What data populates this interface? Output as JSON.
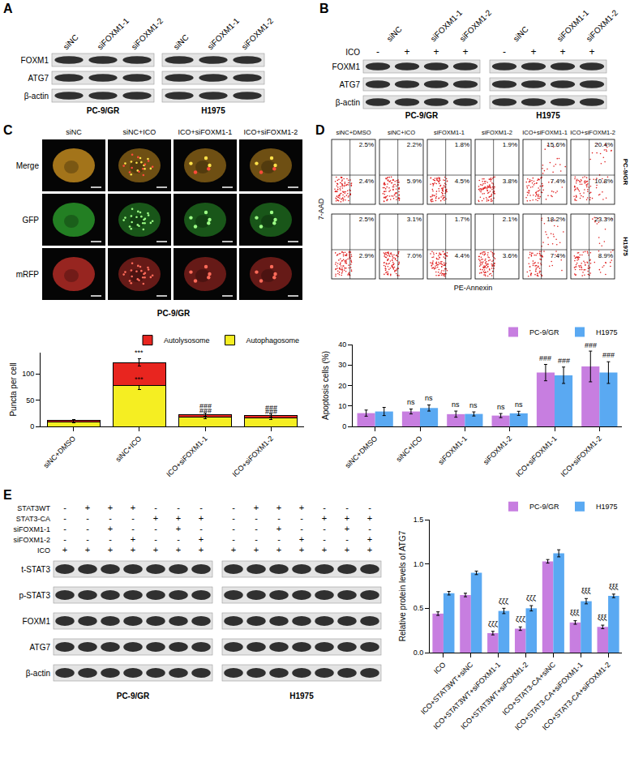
{
  "panels": {
    "A": {
      "label": "A",
      "lanes": [
        "siNC",
        "siFOXM1-1",
        "siFOXM1-2"
      ],
      "cell_lines": [
        "PC-9/GR",
        "H1975"
      ],
      "proteins": [
        "FOXM1",
        "ATG7",
        "β-actin"
      ]
    },
    "B": {
      "label": "B",
      "lane_groups": [
        {
          "text": "siNC",
          "span": 2
        },
        {
          "text": "siFOXM1-1",
          "span": 1
        },
        {
          "text": "siFOXM1-2",
          "span": 1
        }
      ],
      "treatment": {
        "name": "ICO",
        "signs": [
          "-",
          "+",
          "+",
          "+"
        ]
      },
      "cell_lines": [
        "PC-9/GR",
        "H1975"
      ],
      "proteins": [
        "FOXM1",
        "ATG7",
        "β-actin"
      ]
    },
    "C": {
      "label": "C",
      "columns": [
        "siNC",
        "siNC+ICO",
        "ICO+siFOXM1-1",
        "ICO+siFOXM1-2"
      ],
      "rows": [
        "Merge",
        "GFP",
        "mRFP"
      ],
      "cell_line": "PC-9/GR"
    },
    "D": {
      "label": "D",
      "columns": [
        "siNC+DMSO",
        "siNC+ICO",
        "siFOXM1-1",
        "siFOXM1-2",
        "ICO+siFOXM1-1",
        "ICO+siFOXM1-2"
      ],
      "x_label": "PE-Annexin",
      "y_label": "7-AAD",
      "plots": [
        {
          "cell_line": "PC-9/GR",
          "upper_right": [
            "2.5%",
            "2.2%",
            "1.8%",
            "1.9%",
            "15.6%",
            "20.4%"
          ],
          "lower_right": [
            "2.4%",
            "5.9%",
            "4.5%",
            "3.8%",
            "7.4%",
            "10.8%"
          ]
        },
        {
          "cell_line": "H1975",
          "upper_right": [
            "2.5%",
            "3.1%",
            "1.7%",
            "2.1%",
            "18.2%",
            "23.3%"
          ],
          "lower_right": [
            "2.9%",
            "7.0%",
            "4.4%",
            "3.6%",
            "7.4%",
            "8.9%"
          ]
        }
      ]
    },
    "E": {
      "label": "E",
      "treatments": [
        {
          "name": "STAT3WT",
          "signs": [
            "-",
            "+",
            "+",
            "+",
            "-",
            "-",
            "-"
          ]
        },
        {
          "name": "STAT3-CA",
          "signs": [
            "-",
            "-",
            "-",
            "-",
            "+",
            "+",
            "+"
          ]
        },
        {
          "name": "siFOXM1-1",
          "signs": [
            "-",
            "-",
            "+",
            "-",
            "-",
            "+",
            "-"
          ]
        },
        {
          "name": "siFOXM1-2",
          "signs": [
            "-",
            "-",
            "-",
            "+",
            "-",
            "-",
            "+"
          ]
        },
        {
          "name": "ICO",
          "signs": [
            "+",
            "+",
            "+",
            "+",
            "+",
            "+",
            "+"
          ]
        }
      ],
      "cell_lines": [
        "PC-9/GR",
        "H1975"
      ],
      "proteins": [
        "t-STAT3",
        "p-STAT3",
        "FOXM1",
        "ATG7",
        "β-actin"
      ]
    }
  },
  "chart_data": [
    {
      "type": "bar",
      "stacked": true,
      "categories": [
        "siNC+DMSO",
        "siNC+ICO",
        "ICO+siFOXM1-1",
        "ICO+siFOXM1-2"
      ],
      "y_label": "Puncta per cell",
      "ylim": [
        0,
        140
      ],
      "yticks": [
        0,
        50,
        100
      ],
      "grid": false,
      "legend": "top right",
      "series": [
        {
          "name": "Autophagosome",
          "color": "#f5ee22",
          "values": [
            8,
            77,
            17,
            16
          ],
          "errors": [
            1.5,
            7,
            3,
            3
          ]
        },
        {
          "name": "Autolysosome",
          "color": "#e8251f",
          "values": [
            3,
            44,
            6,
            5
          ],
          "errors": [
            2,
            7,
            3,
            3
          ]
        }
      ],
      "annotations": [
        {
          "category": "siNC+ICO",
          "y": 79,
          "text": "***"
        },
        {
          "category": "siNC+ICO",
          "y": 129,
          "text": "***"
        },
        {
          "category": "ICO+siFOXM1-1",
          "y": 18,
          "text": "###"
        },
        {
          "category": "ICO+siFOXM1-1",
          "y": 27,
          "text": "###"
        },
        {
          "category": "ICO+siFOXM1-2",
          "y": 17,
          "text": "###"
        },
        {
          "category": "ICO+siFOXM1-2",
          "y": 25,
          "text": "###"
        }
      ]
    },
    {
      "type": "bar",
      "categories": [
        "siNC+DMSO",
        "siNC+ICO",
        "siFOXM1-1",
        "siFOXM1-2",
        "ICO+siFOXM1-1",
        "ICO+siFOXM1-2"
      ],
      "y_label": "Apoptosis cells (%)",
      "ylim": [
        0,
        40
      ],
      "yticks": [
        0,
        10,
        20,
        30,
        40
      ],
      "grid": false,
      "legend": "top right",
      "series": [
        {
          "name": "PC-9/GR",
          "color": "#c77ee0",
          "values": [
            6.5,
            7.3,
            6.0,
            5.3,
            26.3,
            29.3
          ],
          "errors": [
            1.5,
            1.2,
            1.5,
            1.0,
            4.0,
            7.5
          ]
        },
        {
          "name": "H1975",
          "color": "#5aa9f2",
          "values": [
            7.3,
            9.0,
            6.1,
            6.4,
            25.0,
            26.3
          ],
          "errors": [
            2.0,
            1.5,
            1.0,
            1.0,
            4.0,
            5.3
          ]
        }
      ],
      "annotations": [
        {
          "category": "siNC+ICO",
          "series": "PC-9/GR",
          "y": 9,
          "text": "ns"
        },
        {
          "category": "siNC+ICO",
          "series": "H1975",
          "y": 11,
          "text": "ns"
        },
        {
          "category": "siFOXM1-1",
          "series": "PC-9/GR",
          "y": 8,
          "text": "ns"
        },
        {
          "category": "siFOXM1-1",
          "series": "H1975",
          "y": 7.5,
          "text": "ns"
        },
        {
          "category": "siFOXM1-2",
          "series": "PC-9/GR",
          "y": 6.7,
          "text": "ns"
        },
        {
          "category": "siFOXM1-2",
          "series": "H1975",
          "y": 7.8,
          "text": "ns"
        },
        {
          "category": "ICO+siFOXM1-1",
          "series": "PC-9/GR",
          "y": 30.5,
          "text": "###"
        },
        {
          "category": "ICO+siFOXM1-1",
          "series": "H1975",
          "y": 29.5,
          "text": "###"
        },
        {
          "category": "ICO+siFOXM1-2",
          "series": "PC-9/GR",
          "y": 37,
          "text": "###"
        },
        {
          "category": "ICO+siFOXM1-2",
          "series": "H1975",
          "y": 32,
          "text": "###"
        }
      ]
    },
    {
      "type": "bar",
      "categories": [
        "ICO",
        "ICO+STAT3WT+siNC",
        "ICO+STAT3WT+siFOXM1-1",
        "ICO+STAT3WT+siFOXM1-2",
        "ICO+STAT3-CA+siNC",
        "ICO+STAT3-CA+siFOXM1-1",
        "ICO+STAT3-CA+siFOXM1-2"
      ],
      "y_label": "Relative protein levels of ATG7",
      "ylim": [
        0,
        1.5
      ],
      "yticks": [
        {
          "value": 0,
          "label": "0.0"
        },
        {
          "value": 0.5,
          "label": "0.5"
        },
        {
          "value": 1,
          "label": "1.0"
        },
        {
          "value": 1.5,
          "label": "1.5"
        }
      ],
      "grid": false,
      "legend": "top right",
      "series": [
        {
          "name": "PC-9/GR",
          "color": "#c77ee0",
          "values": [
            0.44,
            0.65,
            0.22,
            0.27,
            1.03,
            0.34,
            0.29
          ],
          "errors": [
            0.02,
            0.02,
            0.02,
            0.02,
            0.02,
            0.02,
            0.02
          ]
        },
        {
          "name": "H1975",
          "color": "#5aa9f2",
          "values": [
            0.67,
            0.9,
            0.47,
            0.5,
            1.12,
            0.58,
            0.64
          ],
          "errors": [
            0.02,
            0.02,
            0.03,
            0.03,
            0.04,
            0.03,
            0.02
          ]
        }
      ],
      "annotations": [
        {
          "category": "ICO+STAT3WT+siFOXM1-1",
          "series": "PC-9/GR",
          "y": 0.26,
          "text": "ζζζ"
        },
        {
          "category": "ICO+STAT3WT+siFOXM1-1",
          "series": "H1975",
          "y": 0.51,
          "text": "ζζζ"
        },
        {
          "category": "ICO+STAT3WT+siFOXM1-2",
          "series": "PC-9/GR",
          "y": 0.31,
          "text": "ζζζ"
        },
        {
          "category": "ICO+STAT3WT+siFOXM1-2",
          "series": "H1975",
          "y": 0.55,
          "text": "ζζζ"
        },
        {
          "category": "ICO+STAT3-CA+siFOXM1-1",
          "series": "PC-9/GR",
          "y": 0.38,
          "text": "ξξξ"
        },
        {
          "category": "ICO+STAT3-CA+siFOXM1-1",
          "series": "H1975",
          "y": 0.63,
          "text": "ξξξ"
        },
        {
          "category": "ICO+STAT3-CA+siFOXM1-2",
          "series": "PC-9/GR",
          "y": 0.33,
          "text": "ξξξ"
        },
        {
          "category": "ICO+STAT3-CA+siFOXM1-2",
          "series": "H1975",
          "y": 0.68,
          "text": "ξξξ"
        }
      ]
    }
  ]
}
